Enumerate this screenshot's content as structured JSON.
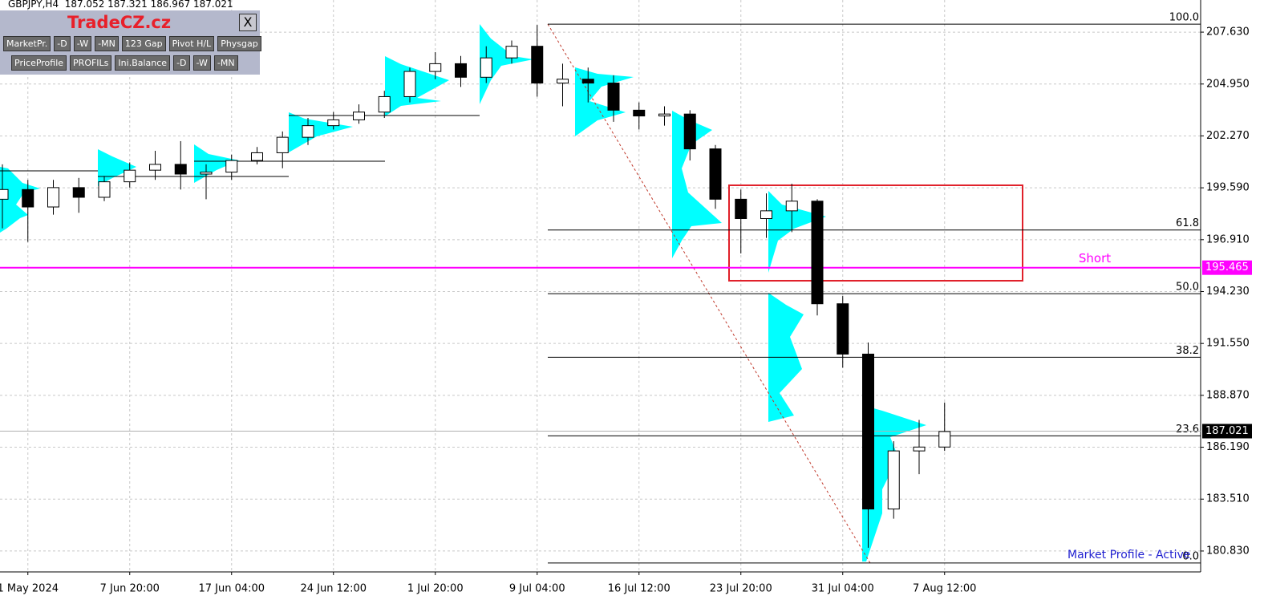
{
  "header": "GBPJPY,H4  187.052 187.321 186.967 187.021",
  "panel": {
    "brand": "TradeCZ.cz",
    "close": "X",
    "row1": [
      "MarketPr.",
      "-D",
      "-W",
      "-MN",
      "123 Gap",
      "Pivot H/L",
      "Physgap"
    ],
    "row2": [
      "PriceProfile",
      "PROFILs",
      "Ini.Balance",
      "-D",
      "-W",
      "-MN"
    ]
  },
  "status": "Market Profile - Active",
  "chart_data": {
    "type": "candlestick",
    "grid": true,
    "color": "#000000",
    "categories": [
      null,
      "1 May 2024",
      null,
      null,
      null,
      "7 Jun 20:00",
      null,
      null,
      null,
      "17 Jun 04:00",
      null,
      null,
      null,
      "24 Jun 12:00",
      null,
      null,
      null,
      "1 Jul 20:00",
      null,
      null,
      null,
      "9 Jul 04:00",
      null,
      null,
      null,
      "16 Jul 12:00",
      null,
      null,
      null,
      "23 Jul 20:00",
      null,
      null,
      null,
      "31 Jul 04:00",
      null,
      null,
      null,
      "7 Aug 12:00"
    ],
    "open": [
      199.0,
      199.5,
      198.6,
      199.6,
      199.1,
      199.9,
      200.5,
      200.8,
      200.3,
      200.4,
      201.0,
      201.4,
      202.2,
      202.8,
      203.1,
      203.5,
      204.3,
      205.6,
      206.0,
      205.3,
      206.3,
      206.9,
      205.0,
      205.2,
      205.0,
      203.6,
      203.3,
      203.4,
      201.6,
      199.0,
      198.0,
      198.4,
      198.9,
      193.6,
      191.0,
      183.0,
      186.0,
      186.2
    ],
    "high": [
      200.8,
      200.0,
      200.0,
      200.1,
      200.2,
      200.9,
      201.5,
      202.0,
      200.8,
      201.3,
      201.7,
      202.5,
      203.2,
      203.5,
      203.9,
      204.6,
      205.8,
      206.6,
      206.4,
      206.9,
      207.2,
      208.0,
      206.0,
      205.8,
      205.4,
      204.0,
      203.8,
      203.6,
      201.8,
      199.5,
      199.3,
      199.8,
      199.0,
      194.0,
      191.6,
      186.5,
      187.6,
      188.5
    ],
    "low": [
      197.5,
      196.8,
      198.2,
      198.3,
      198.9,
      199.6,
      200.0,
      199.5,
      199.0,
      200.0,
      200.8,
      200.6,
      201.8,
      202.6,
      202.9,
      203.2,
      204.0,
      205.2,
      204.8,
      205.0,
      206.0,
      204.3,
      203.8,
      204.0,
      203.0,
      202.6,
      202.8,
      201.0,
      198.5,
      196.2,
      197.0,
      197.3,
      193.0,
      190.3,
      181.0,
      182.5,
      184.8,
      186.0
    ],
    "close": [
      199.5,
      198.6,
      199.6,
      199.1,
      199.9,
      200.5,
      200.8,
      200.3,
      200.4,
      201.0,
      201.4,
      202.2,
      202.8,
      203.1,
      203.5,
      204.3,
      205.6,
      206.0,
      205.3,
      206.3,
      206.9,
      205.0,
      205.2,
      205.0,
      203.6,
      203.3,
      203.4,
      201.6,
      199.0,
      198.0,
      198.4,
      198.9,
      193.6,
      191.0,
      183.0,
      186.0,
      186.2,
      187.0
    ],
    "ylim": [
      179.75,
      209.29
    ],
    "yticks": [
      {
        "value": 180.83,
        "label": "180.830"
      },
      {
        "value": 183.51,
        "label": "183.510"
      },
      {
        "value": 186.19,
        "label": "186.190"
      },
      {
        "value": 188.87,
        "label": "188.870"
      },
      {
        "value": 191.55,
        "label": "191.550"
      },
      {
        "value": 194.23,
        "label": "194.230"
      },
      {
        "value": 196.91,
        "label": "196.910"
      },
      {
        "value": 199.59,
        "label": "199.590"
      },
      {
        "value": 202.27,
        "label": "202.270"
      },
      {
        "value": 204.95,
        "label": "204.950"
      },
      {
        "value": 207.63,
        "label": "207.630"
      }
    ],
    "fibonacci": [
      {
        "label": "100.0",
        "price": 208.04
      },
      {
        "label": "61.8",
        "price": 197.41
      },
      {
        "label": "50.0",
        "price": 194.12
      },
      {
        "label": "38.2",
        "price": 190.84
      },
      {
        "label": "23.6",
        "price": 186.78
      },
      {
        "label": "0.0",
        "price": 180.21
      }
    ],
    "short_line": {
      "label": "Short",
      "value": 195.465,
      "color": "#ff00ff"
    },
    "current_price": {
      "value": 187.021,
      "color": "#000000"
    },
    "zone": {
      "top": 199.72,
      "bottom": 194.79,
      "color": "#e0202a"
    }
  }
}
